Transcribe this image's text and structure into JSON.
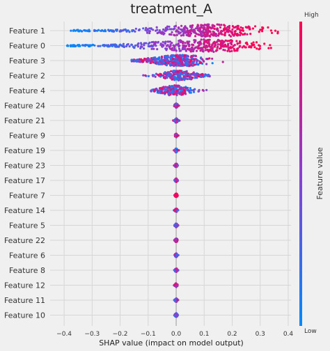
{
  "chart_data": {
    "type": "scatter",
    "subtype": "shap-beeswarm",
    "title": "treatment_A",
    "xlabel": "SHAP value (impact on model output)",
    "ylabel": "",
    "xlim": [
      -0.45,
      0.41
    ],
    "xticks": [
      -0.4,
      -0.3,
      -0.2,
      -0.1,
      0.0,
      0.1,
      0.2,
      0.3,
      0.4
    ],
    "xtick_labels": [
      "−0.4",
      "−0.3",
      "−0.2",
      "−0.1",
      "0.0",
      "0.1",
      "0.2",
      "0.3",
      "0.4"
    ],
    "grid": true,
    "colorbar": {
      "label": "Feature value",
      "high_label": "High",
      "low_label": "Low",
      "high_color": "#ff0052",
      "low_color": "#008bfb"
    },
    "features": [
      {
        "name": "Feature 1",
        "min": -0.38,
        "max": 0.38,
        "peak": 0.13,
        "spread": 0.16,
        "max_halfwidth": 1.0,
        "low_side": "negative"
      },
      {
        "name": "Feature 0",
        "min": -0.39,
        "max": 0.37,
        "peak": 0.12,
        "spread": 0.17,
        "max_halfwidth": 1.0,
        "low_side": "negative"
      },
      {
        "name": "Feature 3",
        "min": -0.16,
        "max": 0.2,
        "peak": 0.02,
        "spread": 0.08,
        "max_halfwidth": 0.9,
        "low_side": "mixed"
      },
      {
        "name": "Feature 2",
        "min": -0.18,
        "max": 0.12,
        "peak": 0.01,
        "spread": 0.05,
        "max_halfwidth": 0.8,
        "low_side": "mixed"
      },
      {
        "name": "Feature 4",
        "min": -0.09,
        "max": 0.11,
        "peak": -0.005,
        "spread": 0.04,
        "max_halfwidth": 0.85,
        "low_side": "mixed"
      },
      {
        "name": "Feature 24",
        "min": -0.01,
        "max": 0.012,
        "peak": 0.0,
        "spread": 0.004,
        "max_halfwidth": 0.35,
        "low_side": "mixed"
      },
      {
        "name": "Feature 21",
        "min": -0.015,
        "max": 0.012,
        "peak": 0.0,
        "spread": 0.004,
        "max_halfwidth": 0.35,
        "low_side": "mixed"
      },
      {
        "name": "Feature 9",
        "min": -0.008,
        "max": 0.01,
        "peak": 0.0,
        "spread": 0.003,
        "max_halfwidth": 0.3,
        "low_side": "mixed"
      },
      {
        "name": "Feature 19",
        "min": -0.008,
        "max": 0.01,
        "peak": 0.0,
        "spread": 0.003,
        "max_halfwidth": 0.3,
        "low_side": "mixed"
      },
      {
        "name": "Feature 23",
        "min": -0.008,
        "max": 0.01,
        "peak": 0.0,
        "spread": 0.003,
        "max_halfwidth": 0.3,
        "low_side": "mixed"
      },
      {
        "name": "Feature 17",
        "min": -0.015,
        "max": 0.01,
        "peak": 0.0,
        "spread": 0.003,
        "max_halfwidth": 0.3,
        "low_side": "mixed"
      },
      {
        "name": "Feature 7",
        "min": -0.045,
        "max": 0.008,
        "peak": 0.0,
        "spread": 0.003,
        "max_halfwidth": 0.3,
        "low_side": "negative"
      },
      {
        "name": "Feature 14",
        "min": -0.008,
        "max": 0.01,
        "peak": 0.0,
        "spread": 0.003,
        "max_halfwidth": 0.3,
        "low_side": "mixed"
      },
      {
        "name": "Feature 5",
        "min": -0.008,
        "max": 0.01,
        "peak": 0.0,
        "spread": 0.003,
        "max_halfwidth": 0.3,
        "low_side": "mixed"
      },
      {
        "name": "Feature 22",
        "min": -0.008,
        "max": 0.01,
        "peak": 0.0,
        "spread": 0.003,
        "max_halfwidth": 0.3,
        "low_side": "mixed"
      },
      {
        "name": "Feature 6",
        "min": -0.008,
        "max": 0.01,
        "peak": 0.0,
        "spread": 0.003,
        "max_halfwidth": 0.3,
        "low_side": "mixed"
      },
      {
        "name": "Feature 8",
        "min": -0.008,
        "max": 0.01,
        "peak": 0.0,
        "spread": 0.003,
        "max_halfwidth": 0.3,
        "low_side": "mixed"
      },
      {
        "name": "Feature 12",
        "min": -0.008,
        "max": 0.01,
        "peak": 0.0,
        "spread": 0.003,
        "max_halfwidth": 0.3,
        "low_side": "mixed"
      },
      {
        "name": "Feature 11",
        "min": -0.008,
        "max": 0.01,
        "peak": 0.0,
        "spread": 0.003,
        "max_halfwidth": 0.3,
        "low_side": "mixed"
      },
      {
        "name": "Feature 10",
        "min": -0.008,
        "max": 0.01,
        "peak": 0.0,
        "spread": 0.003,
        "max_halfwidth": 0.3,
        "low_side": "mixed"
      }
    ]
  }
}
